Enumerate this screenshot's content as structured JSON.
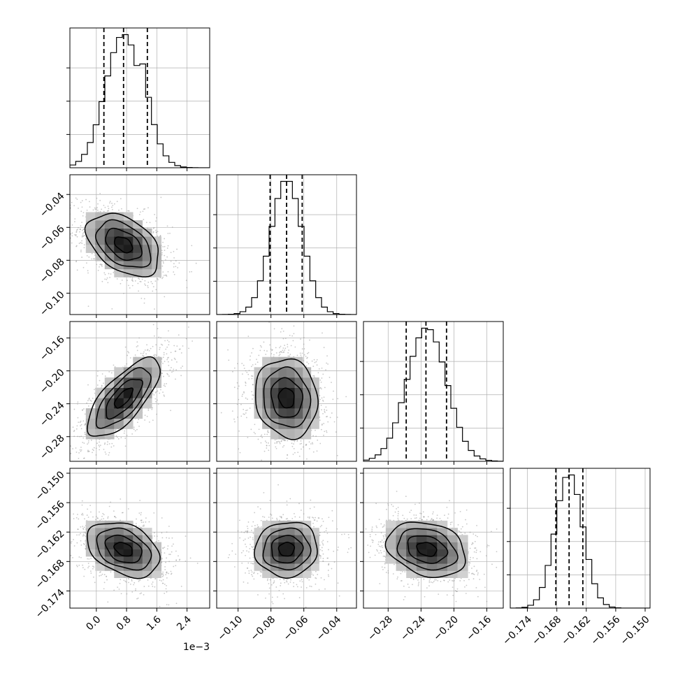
{
  "chart_data": {
    "type": "corner",
    "title": "",
    "grid": true,
    "legend": "none",
    "colors": {
      "line": "#000000",
      "grid": "#b0b0b0",
      "scatter": "#9a9a9a",
      "density_light": "#d9d9d9",
      "density_mid": "#8c8c8c",
      "density_dark": "#1a1a1a"
    },
    "parameters": [
      {
        "index": 0,
        "range": [
          -0.0007,
          0.003
        ],
        "ticks": [
          0.0,
          0.0008,
          0.0016,
          0.0024
        ],
        "tick_labels": [
          "0.0",
          "0.8",
          "1.6",
          "2.4"
        ],
        "offset_label": "1e−3",
        "mean": 0.00072,
        "sd": 0.00048,
        "quantiles": [
          0.0002,
          0.00072,
          0.00135
        ]
      },
      {
        "index": 1,
        "range": [
          -0.113,
          -0.028
        ],
        "ticks": [
          -0.1,
          -0.08,
          -0.06,
          -0.04
        ],
        "tick_labels": [
          "−0.10",
          "−0.08",
          "−0.06",
          "−0.04"
        ],
        "mean": -0.0705,
        "sd": 0.0095,
        "quantiles": [
          -0.0805,
          -0.0705,
          -0.061
        ]
      },
      {
        "index": 2,
        "range": [
          -0.31,
          -0.14
        ],
        "ticks": [
          -0.28,
          -0.24,
          -0.2,
          -0.16
        ],
        "tick_labels": [
          "−0.28",
          "−0.24",
          "−0.20",
          "−0.16"
        ],
        "mean": -0.233,
        "sd": 0.024,
        "quantiles": [
          -0.258,
          -0.234,
          -0.209
        ]
      },
      {
        "index": 3,
        "range": [
          -0.1775,
          -0.149
        ],
        "ticks": [
          -0.174,
          -0.168,
          -0.162,
          -0.156,
          -0.15
        ],
        "tick_labels": [
          "−0.174",
          "−0.168",
          "−0.162",
          "−0.156",
          "−0.150"
        ],
        "mean": -0.1655,
        "sd": 0.0028,
        "quantiles": [
          -0.1682,
          -0.1655,
          -0.1627
        ]
      }
    ],
    "correlations": [
      {
        "i": 1,
        "j": 0,
        "rho": -0.42
      },
      {
        "i": 2,
        "j": 0,
        "rho": 0.72
      },
      {
        "i": 2,
        "j": 1,
        "rho": -0.1
      },
      {
        "i": 3,
        "j": 0,
        "rho": -0.35
      },
      {
        "i": 3,
        "j": 1,
        "rho": 0.05
      },
      {
        "i": 3,
        "j": 2,
        "rho": -0.25
      }
    ]
  }
}
